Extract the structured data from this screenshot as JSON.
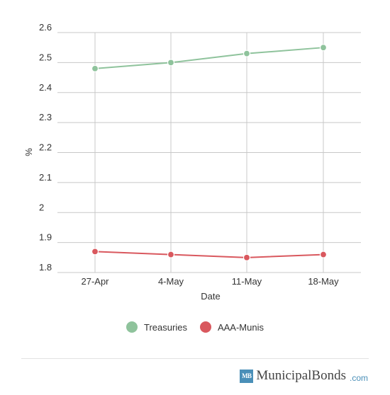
{
  "chart_data": {
    "type": "line",
    "categories": [
      "27-Apr",
      "4-May",
      "11-May",
      "18-May"
    ],
    "series": [
      {
        "name": "Treasuries",
        "values": [
          2.48,
          2.5,
          2.53,
          2.55
        ],
        "color": "#8fc39c"
      },
      {
        "name": "AAA-Munis",
        "values": [
          1.87,
          1.86,
          1.85,
          1.86
        ],
        "color": "#d9585e"
      }
    ],
    "xlabel": "Date",
    "ylabel": "%",
    "ylim": [
      1.8,
      2.6
    ],
    "yticks": [
      "1.8",
      "1.9",
      "2",
      "2.1",
      "2.2",
      "2.3",
      "2.4",
      "2.5",
      "2.6"
    ],
    "grid": true,
    "legend_position": "bottom"
  },
  "footer": {
    "logo_badge": "MB",
    "logo_text": "MunicipalBonds",
    "logo_suffix": ".com"
  }
}
